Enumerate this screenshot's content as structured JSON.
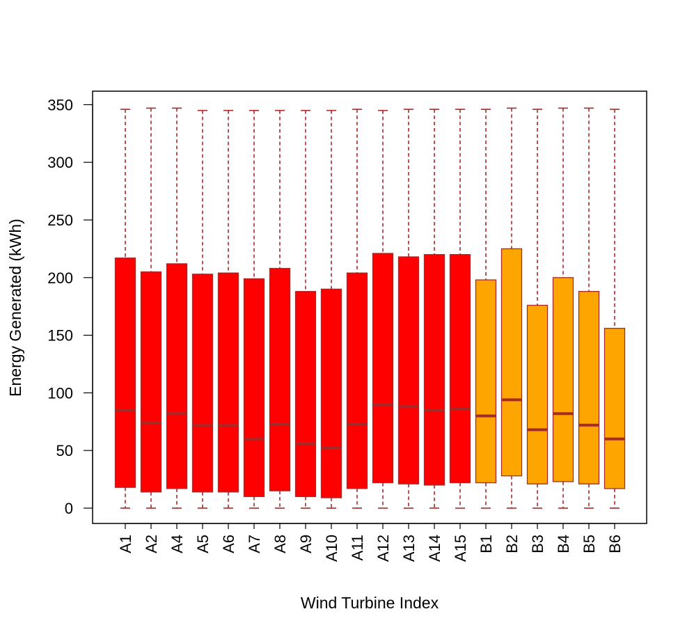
{
  "chart_data": {
    "type": "boxplot",
    "title": "",
    "xlabel": "Wind Turbine Index",
    "ylabel": "Energy Generated (kWh)",
    "ylim": [
      -13,
      362
    ],
    "yticks": [
      0,
      50,
      100,
      150,
      200,
      250,
      300,
      350
    ],
    "grid": false,
    "legend": "none",
    "colors": {
      "A": "#ff0000",
      "B": "#ffa500",
      "outline": "#a52a2a"
    },
    "categories": [
      "A1",
      "A2",
      "A4",
      "A5",
      "A6",
      "A7",
      "A8",
      "A9",
      "A10",
      "A11",
      "A12",
      "A13",
      "A14",
      "A15",
      "B1",
      "B2",
      "B3",
      "B4",
      "B5",
      "B6"
    ],
    "boxes": [
      {
        "label": "A1",
        "group": "A",
        "min": 0,
        "q1": 18,
        "median": 85,
        "q3": 217,
        "max": 346
      },
      {
        "label": "A2",
        "group": "A",
        "min": 0,
        "q1": 14,
        "median": 74,
        "q3": 205,
        "max": 347
      },
      {
        "label": "A4",
        "group": "A",
        "min": 0,
        "q1": 17,
        "median": 82,
        "q3": 212,
        "max": 347
      },
      {
        "label": "A5",
        "group": "A",
        "min": 0,
        "q1": 14,
        "median": 72,
        "q3": 203,
        "max": 345
      },
      {
        "label": "A6",
        "group": "A",
        "min": 0,
        "q1": 14,
        "median": 72,
        "q3": 204,
        "max": 345
      },
      {
        "label": "A7",
        "group": "A",
        "min": 0,
        "q1": 10,
        "median": 60,
        "q3": 199,
        "max": 345
      },
      {
        "label": "A8",
        "group": "A",
        "min": 0,
        "q1": 15,
        "median": 73,
        "q3": 208,
        "max": 345
      },
      {
        "label": "A9",
        "group": "A",
        "min": 0,
        "q1": 10,
        "median": 56,
        "q3": 188,
        "max": 345
      },
      {
        "label": "A10",
        "group": "A",
        "min": 0,
        "q1": 9,
        "median": 52,
        "q3": 190,
        "max": 345
      },
      {
        "label": "A11",
        "group": "A",
        "min": 0,
        "q1": 17,
        "median": 73,
        "q3": 204,
        "max": 346
      },
      {
        "label": "A12",
        "group": "A",
        "min": 0,
        "q1": 22,
        "median": 90,
        "q3": 221,
        "max": 345
      },
      {
        "label": "A13",
        "group": "A",
        "min": 0,
        "q1": 21,
        "median": 88,
        "q3": 218,
        "max": 346
      },
      {
        "label": "A14",
        "group": "A",
        "min": 0,
        "q1": 20,
        "median": 85,
        "q3": 220,
        "max": 346
      },
      {
        "label": "A15",
        "group": "A",
        "min": 0,
        "q1": 22,
        "median": 86,
        "q3": 220,
        "max": 346
      },
      {
        "label": "B1",
        "group": "B",
        "min": 0,
        "q1": 22,
        "median": 80,
        "q3": 198,
        "max": 346
      },
      {
        "label": "B2",
        "group": "B",
        "min": 0,
        "q1": 28,
        "median": 94,
        "q3": 225,
        "max": 347
      },
      {
        "label": "B3",
        "group": "B",
        "min": 0,
        "q1": 21,
        "median": 68,
        "q3": 176,
        "max": 346
      },
      {
        "label": "B4",
        "group": "B",
        "min": 0,
        "q1": 23,
        "median": 82,
        "q3": 200,
        "max": 347
      },
      {
        "label": "B5",
        "group": "B",
        "min": 0,
        "q1": 21,
        "median": 72,
        "q3": 188,
        "max": 347
      },
      {
        "label": "B6",
        "group": "B",
        "min": 0,
        "q1": 17,
        "median": 60,
        "q3": 156,
        "max": 346
      }
    ]
  }
}
